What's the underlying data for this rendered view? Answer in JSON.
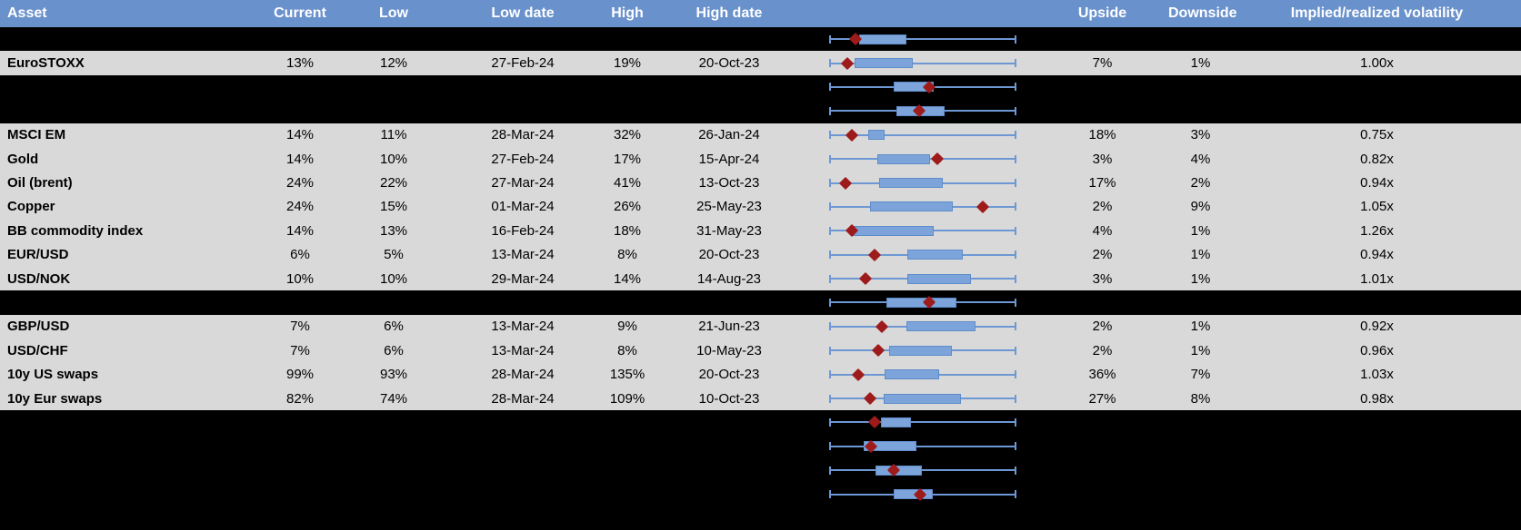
{
  "colors": {
    "header_bg": "#6991CC",
    "header_text": "#FFFFFF",
    "row_gray": "#D9D9D9",
    "row_black": "#000000",
    "box_fill": "#7CA4DB",
    "box_border": "#5E8CC9",
    "whisker_blue": "#6D98D4",
    "marker_red": "#9E1B1B",
    "divider_gray": "#D9D9D9",
    "body_text": "#000000"
  },
  "table": {
    "columns": [
      "Asset",
      "Current",
      "Low",
      "Low date",
      "High",
      "High date",
      "",
      "Upside",
      "Downside",
      "Implied/realized volatility"
    ],
    "rows": [
      {
        "bg": "black",
        "boxplot": {
          "box_lo": 15.7,
          "box_hi": 41.2,
          "marker": 13.7
        }
      },
      {
        "bg": "gray",
        "asset": "EuroSTOXX",
        "current": "13%",
        "low": "12%",
        "low_date": "27-Feb-24",
        "high": "19%",
        "high_date": "20-Oct-23",
        "upside": "7%",
        "downside": "1%",
        "implied": "1.00x",
        "boxplot": {
          "box_lo": 13.2,
          "box_hi": 44.6,
          "marker": 9.5
        }
      },
      {
        "bg": "black",
        "boxplot": {
          "box_lo": 34.3,
          "box_hi": 55.7,
          "marker": 53.6
        }
      },
      {
        "bg": "black",
        "boxplot": {
          "box_lo": 35.7,
          "box_hi": 61.8,
          "marker": 47.9
        }
      },
      {
        "bg": "gray",
        "asset": "MSCI EM",
        "current": "14%",
        "low": "11%",
        "low_date": "28-Mar-24",
        "high": "32%",
        "high_date": "26-Jan-24",
        "upside": "18%",
        "downside": "3%",
        "implied": "0.75x",
        "boxplot": {
          "box_lo": 20.6,
          "box_hi": 29.4,
          "marker": 11.8
        }
      },
      {
        "bg": "gray",
        "asset": "Gold",
        "current": "14%",
        "low": "10%",
        "low_date": "27-Feb-24",
        "high": "17%",
        "high_date": "15-Apr-24",
        "upside": "3%",
        "downside": "4%",
        "implied": "0.82x",
        "boxplot": {
          "box_lo": 25.5,
          "box_hi": 53.9,
          "marker": 57.8
        }
      },
      {
        "bg": "gray",
        "asset": "Oil (brent)",
        "current": "24%",
        "low": "22%",
        "low_date": "27-Mar-24",
        "high": "41%",
        "high_date": "13-Oct-23",
        "upside": "17%",
        "downside": "2%",
        "implied": "0.94x",
        "boxplot": {
          "box_lo": 26.5,
          "box_hi": 60.8,
          "marker": 8.3
        }
      },
      {
        "bg": "gray",
        "asset": "Copper",
        "current": "24%",
        "low": "15%",
        "low_date": "01-Mar-24",
        "high": "26%",
        "high_date": "25-May-23",
        "upside": "2%",
        "downside": "9%",
        "implied": "1.05x",
        "boxplot": {
          "box_lo": 21.6,
          "box_hi": 66.2,
          "marker": 82.4
        }
      },
      {
        "bg": "gray",
        "asset": "BB commodity index",
        "current": "14%",
        "low": "13%",
        "low_date": "16-Feb-24",
        "high": "18%",
        "high_date": "31-May-23",
        "upside": "4%",
        "downside": "1%",
        "implied": "1.26x",
        "boxplot": {
          "box_lo": 12.3,
          "box_hi": 55.9,
          "marker": 11.8
        }
      },
      {
        "bg": "gray",
        "asset": "EUR/USD",
        "current": "6%",
        "low": "5%",
        "low_date": "13-Mar-24",
        "high": "8%",
        "high_date": "20-Oct-23",
        "upside": "2%",
        "downside": "1%",
        "implied": "0.94x",
        "boxplot": {
          "box_lo": 41.7,
          "box_hi": 71.6,
          "marker": 24.0
        }
      },
      {
        "bg": "gray",
        "asset": "USD/NOK",
        "current": "10%",
        "low": "10%",
        "low_date": "29-Mar-24",
        "high": "14%",
        "high_date": "14-Aug-23",
        "upside": "3%",
        "downside": "1%",
        "implied": "1.01x",
        "boxplot": {
          "box_lo": 41.7,
          "box_hi": 76.0,
          "marker": 19.1
        }
      },
      {
        "bg": "black",
        "boxplot": {
          "box_lo": 30.4,
          "box_hi": 68.1,
          "marker": 53.4
        }
      },
      {
        "bg": "gray",
        "asset": "GBP/USD",
        "current": "7%",
        "low": "6%",
        "low_date": "13-Mar-24",
        "high": "9%",
        "high_date": "21-Jun-23",
        "upside": "2%",
        "downside": "1%",
        "implied": "0.92x",
        "boxplot": {
          "box_lo": 41.2,
          "box_hi": 78.4,
          "marker": 27.9
        }
      },
      {
        "bg": "gray",
        "asset": "USD/CHF",
        "current": "7%",
        "low": "6%",
        "low_date": "13-Mar-24",
        "high": "8%",
        "high_date": "10-May-23",
        "upside": "2%",
        "downside": "1%",
        "implied": "0.96x",
        "boxplot": {
          "box_lo": 31.9,
          "box_hi": 65.7,
          "marker": 26.0
        }
      },
      {
        "bg": "gray",
        "asset": "10y US swaps",
        "current": "99%",
        "low": "93%",
        "low_date": "28-Mar-24",
        "high": "135%",
        "high_date": "20-Oct-23",
        "upside": "36%",
        "downside": "7%",
        "implied": "1.03x",
        "boxplot": {
          "box_lo": 29.4,
          "box_hi": 58.8,
          "marker": 15.2
        }
      },
      {
        "bg": "gray",
        "asset": "10y Eur swaps",
        "current": "82%",
        "low": "74%",
        "low_date": "28-Mar-24",
        "high": "109%",
        "high_date": "10-Oct-23",
        "upside": "27%",
        "downside": "8%",
        "implied": "0.98x",
        "boxplot": {
          "box_lo": 28.9,
          "box_hi": 70.6,
          "marker": 21.6
        }
      },
      {
        "bg": "black",
        "boxplot": {
          "box_lo": 27.6,
          "box_hi": 43.5,
          "marker": 24.0
        }
      },
      {
        "bg": "black",
        "boxplot": {
          "box_lo": 18.1,
          "box_hi": 46.6,
          "marker": 22.1
        }
      },
      {
        "bg": "black",
        "boxplot": {
          "box_lo": 24.4,
          "box_hi": 49.7,
          "marker": 34.4
        }
      },
      {
        "bg": "black",
        "boxplot": {
          "box_lo": 34.2,
          "box_hi": 55.2,
          "marker": 48.6
        }
      },
      {
        "bg": "black"
      }
    ]
  },
  "chart_data": {
    "type": "boxplot",
    "orientation": "horizontal",
    "whisker_span_pct": [
      0,
      100
    ],
    "legend": "whiskers span each row's low-high range; diamond marker = current value; box = middle band (positions in % of whisker span)",
    "rows": [
      {
        "label": "",
        "box_pct": [
          15.7,
          41.2
        ],
        "marker_pct": 13.7
      },
      {
        "label": "EuroSTOXX",
        "low": "12%",
        "high": "19%",
        "current": "13%",
        "box_pct": [
          13.2,
          44.6
        ],
        "marker_pct": 9.5
      },
      {
        "label": "",
        "box_pct": [
          34.3,
          55.7
        ],
        "marker_pct": 53.6
      },
      {
        "label": "",
        "box_pct": [
          35.7,
          61.8
        ],
        "marker_pct": 47.9
      },
      {
        "label": "MSCI EM",
        "low": "11%",
        "high": "32%",
        "current": "14%",
        "box_pct": [
          20.6,
          29.4
        ],
        "marker_pct": 11.8
      },
      {
        "label": "Gold",
        "low": "10%",
        "high": "17%",
        "current": "14%",
        "box_pct": [
          25.5,
          53.9
        ],
        "marker_pct": 57.8
      },
      {
        "label": "Oil (brent)",
        "low": "22%",
        "high": "41%",
        "current": "24%",
        "box_pct": [
          26.5,
          60.8
        ],
        "marker_pct": 8.3
      },
      {
        "label": "Copper",
        "low": "15%",
        "high": "26%",
        "current": "24%",
        "box_pct": [
          21.6,
          66.2
        ],
        "marker_pct": 82.4
      },
      {
        "label": "BB commodity index",
        "low": "13%",
        "high": "18%",
        "current": "14%",
        "box_pct": [
          12.3,
          55.9
        ],
        "marker_pct": 11.8
      },
      {
        "label": "EUR/USD",
        "low": "5%",
        "high": "8%",
        "current": "6%",
        "box_pct": [
          41.7,
          71.6
        ],
        "marker_pct": 24.0
      },
      {
        "label": "USD/NOK",
        "low": "10%",
        "high": "14%",
        "current": "10%",
        "box_pct": [
          41.7,
          76.0
        ],
        "marker_pct": 19.1
      },
      {
        "label": "",
        "box_pct": [
          30.4,
          68.1
        ],
        "marker_pct": 53.4
      },
      {
        "label": "GBP/USD",
        "low": "6%",
        "high": "9%",
        "current": "7%",
        "box_pct": [
          41.2,
          78.4
        ],
        "marker_pct": 27.9
      },
      {
        "label": "USD/CHF",
        "low": "6%",
        "high": "8%",
        "current": "7%",
        "box_pct": [
          31.9,
          65.7
        ],
        "marker_pct": 26.0
      },
      {
        "label": "10y US swaps",
        "low": "93%",
        "high": "135%",
        "current": "99%",
        "box_pct": [
          29.4,
          58.8
        ],
        "marker_pct": 15.2
      },
      {
        "label": "10y Eur swaps",
        "low": "74%",
        "high": "109%",
        "current": "82%",
        "box_pct": [
          28.9,
          70.6
        ],
        "marker_pct": 21.6
      },
      {
        "label": "",
        "box_pct": [
          27.6,
          43.5
        ],
        "marker_pct": 24.0
      },
      {
        "label": "",
        "box_pct": [
          18.1,
          46.6
        ],
        "marker_pct": 22.1
      },
      {
        "label": "",
        "box_pct": [
          24.4,
          49.7
        ],
        "marker_pct": 34.4
      },
      {
        "label": "",
        "box_pct": [
          34.2,
          55.2
        ],
        "marker_pct": 48.6
      }
    ]
  }
}
